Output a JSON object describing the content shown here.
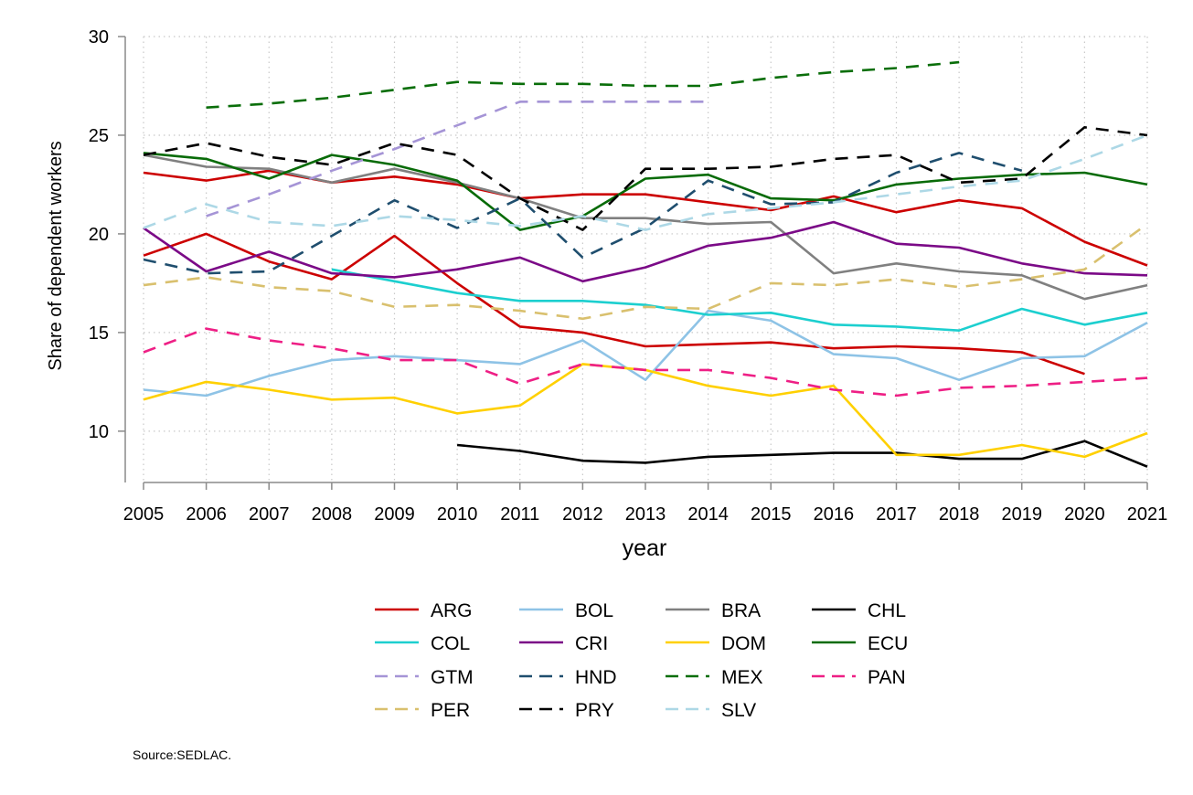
{
  "chart_data": {
    "type": "line",
    "title": "",
    "xlabel": "year",
    "ylabel": "Share of dependent workers",
    "note": "Source:SEDLAC.",
    "xlim": [
      2005,
      2021
    ],
    "ylim": [
      7.4,
      30
    ],
    "x_ticks": [
      2005,
      2006,
      2007,
      2008,
      2009,
      2010,
      2011,
      2012,
      2013,
      2014,
      2015,
      2016,
      2017,
      2018,
      2019,
      2020,
      2021
    ],
    "y_ticks": [
      10,
      15,
      20,
      25,
      30
    ],
    "grid": true,
    "legend_position": "bottom",
    "series": [
      {
        "name": "ARG",
        "color": "#cc0000",
        "dash": "solid",
        "x": [
          2005,
          2006,
          2007,
          2008,
          2009,
          2010,
          2011,
          2012,
          2013,
          2014,
          2015,
          2016,
          2017,
          2018,
          2019,
          2020,
          2021
        ],
        "values": [
          23.1,
          22.7,
          23.2,
          22.6,
          22.9,
          22.5,
          21.8,
          22.0,
          22.0,
          21.6,
          21.2,
          21.9,
          21.1,
          21.7,
          21.3,
          19.6,
          18.4
        ]
      },
      {
        "name": "ARG",
        "color": "#cc0000",
        "dash": "solid",
        "legend": false,
        "x": [
          2005,
          2006,
          2007,
          2008,
          2009,
          2010,
          2011,
          2012,
          2013,
          2014,
          2015,
          2016,
          2017,
          2018,
          2019,
          2020
        ],
        "values": [
          18.9,
          20.0,
          18.6,
          17.7,
          19.9,
          17.5,
          15.3,
          15.0,
          14.3,
          14.4,
          14.5,
          14.2,
          14.3,
          14.2,
          14.0,
          12.9
        ]
      },
      {
        "name": "BOL",
        "color": "#8ec3e6",
        "dash": "solid",
        "x": [
          2005,
          2006,
          2007,
          2008,
          2009,
          2010,
          2011,
          2012,
          2013,
          2014,
          2015,
          2016,
          2017,
          2018,
          2019,
          2020,
          2021
        ],
        "values": [
          12.1,
          11.8,
          12.8,
          13.6,
          13.8,
          13.6,
          13.4,
          14.6,
          12.6,
          16.1,
          15.6,
          13.9,
          13.7,
          12.6,
          13.7,
          13.8,
          15.5
        ]
      },
      {
        "name": "BRA",
        "color": "#808080",
        "dash": "solid",
        "x": [
          2005,
          2006,
          2007,
          2008,
          2009,
          2010,
          2011,
          2012,
          2013,
          2014,
          2015,
          2016,
          2017,
          2018,
          2019,
          2020,
          2021
        ],
        "values": [
          24.0,
          23.4,
          23.3,
          22.6,
          23.3,
          22.6,
          21.8,
          20.8,
          20.8,
          20.5,
          20.6,
          18.0,
          18.5,
          18.1,
          17.9,
          16.7,
          17.4
        ]
      },
      {
        "name": "CHL",
        "color": "#000000",
        "dash": "solid",
        "x": [
          2010,
          2011,
          2012,
          2013,
          2014,
          2015,
          2016,
          2017,
          2018,
          2019,
          2020,
          2021
        ],
        "values": [
          9.3,
          9.0,
          8.5,
          8.4,
          8.7,
          8.8,
          8.9,
          8.9,
          8.6,
          8.6,
          9.5,
          8.2
        ]
      },
      {
        "name": "COL",
        "color": "#1ccfcf",
        "dash": "solid",
        "x": [
          2008,
          2009,
          2010,
          2011,
          2012,
          2013,
          2014,
          2015,
          2016,
          2017,
          2018,
          2019,
          2020,
          2021
        ],
        "values": [
          18.2,
          17.6,
          17.0,
          16.6,
          16.6,
          16.4,
          15.9,
          16.0,
          15.4,
          15.3,
          15.1,
          16.2,
          15.4,
          16.0
        ]
      },
      {
        "name": "CRI",
        "color": "#7b0a87",
        "dash": "solid",
        "x": [
          2005,
          2006,
          2007,
          2008,
          2009,
          2010,
          2011,
          2012,
          2013,
          2014,
          2015,
          2016,
          2017,
          2018,
          2019,
          2020,
          2021
        ],
        "values": [
          20.3,
          18.1,
          19.1,
          18.0,
          17.8,
          18.2,
          18.8,
          17.6,
          18.3,
          19.4,
          19.8,
          20.6,
          19.5,
          19.3,
          18.5,
          18.0,
          17.9
        ]
      },
      {
        "name": "DOM",
        "color": "#ffd000",
        "dash": "solid",
        "x": [
          2005,
          2006,
          2007,
          2008,
          2009,
          2010,
          2011,
          2012,
          2013,
          2014,
          2015,
          2016,
          2017,
          2018,
          2019,
          2020,
          2021
        ],
        "values": [
          11.6,
          12.5,
          12.1,
          11.6,
          11.7,
          10.9,
          11.3,
          13.4,
          13.1,
          12.3,
          11.8,
          12.3,
          8.8,
          8.8,
          9.3,
          8.7,
          9.9
        ]
      },
      {
        "name": "ECU",
        "color": "#086b08",
        "dash": "solid",
        "x": [
          2005,
          2006,
          2007,
          2008,
          2009,
          2010,
          2011,
          2012,
          2013,
          2014,
          2015,
          2016,
          2017,
          2018,
          2019,
          2020,
          2021
        ],
        "values": [
          24.1,
          23.8,
          22.8,
          24.0,
          23.5,
          22.7,
          20.2,
          20.9,
          22.8,
          23.0,
          21.8,
          21.7,
          22.5,
          22.8,
          23.0,
          23.1,
          22.5
        ]
      },
      {
        "name": "GTM",
        "color": "#a594d6",
        "dash": "dashed",
        "x": [
          2006,
          2007,
          2008,
          2009,
          2010,
          2011,
          2012,
          2013,
          2014
        ],
        "values": [
          20.9,
          22.0,
          23.2,
          24.3,
          25.5,
          26.7,
          26.7,
          26.7,
          26.7
        ]
      },
      {
        "name": "HND",
        "color": "#1f4e6e",
        "dash": "dashed",
        "x": [
          2005,
          2006,
          2007,
          2008,
          2009,
          2010,
          2011,
          2012,
          2013,
          2014,
          2015,
          2016,
          2017,
          2018,
          2019
        ],
        "values": [
          18.7,
          18.0,
          18.1,
          19.9,
          21.7,
          20.3,
          21.8,
          18.8,
          20.3,
          22.7,
          21.5,
          21.6,
          23.1,
          24.1,
          23.2
        ]
      },
      {
        "name": "MEX",
        "color": "#0a6e0a",
        "dash": "dashed",
        "x": [
          2006,
          2007,
          2008,
          2009,
          2010,
          2011,
          2012,
          2013,
          2014,
          2015,
          2016,
          2017,
          2018
        ],
        "values": [
          26.4,
          26.6,
          26.9,
          27.3,
          27.7,
          27.6,
          27.6,
          27.5,
          27.5,
          27.9,
          28.2,
          28.4,
          28.7
        ]
      },
      {
        "name": "PAN",
        "color": "#ee1f85",
        "dash": "dashed",
        "x": [
          2005,
          2006,
          2007,
          2008,
          2009,
          2010,
          2011,
          2012,
          2013,
          2014,
          2015,
          2016,
          2017,
          2018,
          2019,
          2020,
          2021
        ],
        "values": [
          14.0,
          15.2,
          14.6,
          14.2,
          13.6,
          13.6,
          12.4,
          13.4,
          13.1,
          13.1,
          12.7,
          12.1,
          11.8,
          12.2,
          12.3,
          12.5,
          12.7
        ]
      },
      {
        "name": "PER",
        "color": "#d9c06e",
        "dash": "dashed",
        "x": [
          2005,
          2006,
          2007,
          2008,
          2009,
          2010,
          2011,
          2012,
          2013,
          2014,
          2015,
          2016,
          2017,
          2018,
          2019,
          2020,
          2021
        ],
        "values": [
          17.4,
          17.8,
          17.3,
          17.1,
          16.3,
          16.4,
          16.1,
          15.7,
          16.3,
          16.2,
          17.5,
          17.4,
          17.7,
          17.3,
          17.7,
          18.2,
          20.5
        ]
      },
      {
        "name": "PRY",
        "color": "#000000",
        "dash": "dashed",
        "x": [
          2005,
          2006,
          2007,
          2008,
          2009,
          2010,
          2011,
          2012,
          2013,
          2014,
          2015,
          2016,
          2017,
          2018,
          2019,
          2020,
          2021
        ],
        "values": [
          24.0,
          24.6,
          23.9,
          23.5,
          24.6,
          24.0,
          21.8,
          20.2,
          23.3,
          23.3,
          23.4,
          23.8,
          24.0,
          22.6,
          22.8,
          25.4,
          25.0
        ]
      },
      {
        "name": "SLV",
        "color": "#add8e6",
        "dash": "dashed",
        "x": [
          2005,
          2006,
          2007,
          2008,
          2009,
          2010,
          2011,
          2012,
          2013,
          2014,
          2015,
          2016,
          2017,
          2018,
          2019,
          2020,
          2021
        ],
        "values": [
          20.3,
          21.5,
          20.6,
          20.4,
          20.9,
          20.7,
          20.4,
          20.9,
          20.2,
          21.0,
          21.3,
          21.6,
          22.0,
          22.4,
          22.7,
          23.8,
          25.0
        ]
      }
    ],
    "legend_columns": [
      [
        "ARG",
        "COL",
        "GTM",
        "PER"
      ],
      [
        "BOL",
        "CRI",
        "HND",
        "PRY"
      ],
      [
        "BRA",
        "DOM",
        "MEX",
        "SLV"
      ],
      [
        "CHL",
        "ECU",
        "PAN"
      ]
    ]
  }
}
